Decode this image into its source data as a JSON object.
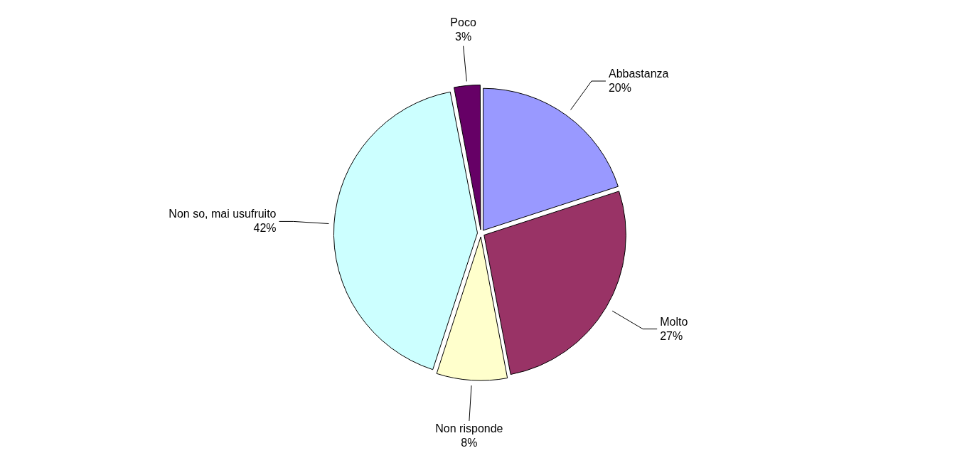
{
  "chart_data": {
    "type": "pie",
    "categories": [
      "Abbastanza",
      "Molto",
      "Non risponde",
      "Non so, mai usufruito",
      "Poco"
    ],
    "values": [
      20,
      27,
      8,
      42,
      3
    ],
    "value_labels": [
      "20%",
      "27%",
      "8%",
      "42%",
      "3%"
    ],
    "colors": [
      "#9999ff",
      "#993366",
      "#ffffcc",
      "#ccffff",
      "#660066"
    ],
    "legend": false
  }
}
